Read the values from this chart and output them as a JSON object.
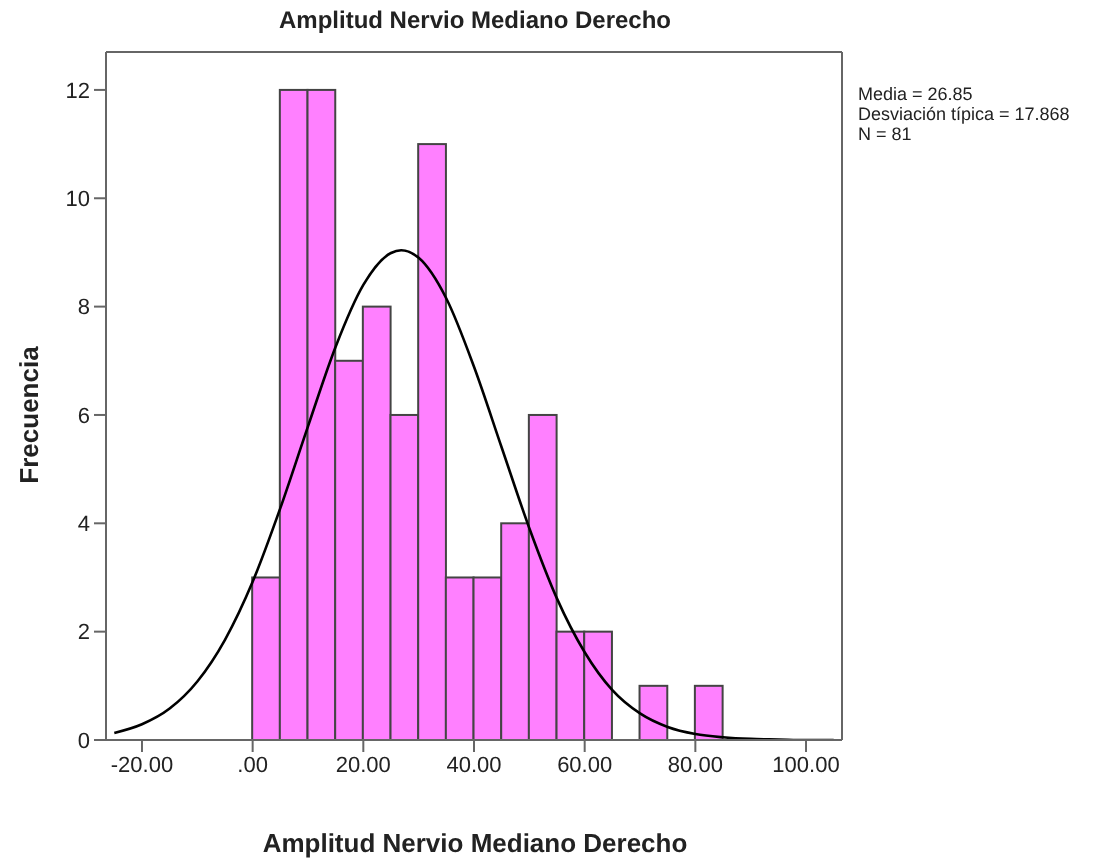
{
  "chart_data": {
    "type": "histogram",
    "title": "Amplitud Nervio Mediano Derecho",
    "xlabel": "Amplitud Nervio Mediano Derecho",
    "ylabel": "Frecuencia",
    "annotations": [
      "Media = 26.85",
      "Desviación típica = 17.868",
      "N = 81"
    ],
    "bins": [
      0,
      5,
      10,
      15,
      20,
      25,
      30,
      35,
      40,
      45,
      50,
      55,
      60,
      65,
      70,
      75,
      80,
      85
    ],
    "values": [
      3,
      12,
      12,
      7,
      8,
      6,
      11,
      3,
      3,
      4,
      6,
      2,
      2,
      0,
      1,
      0,
      1
    ],
    "color": "#ff80ff",
    "series": [
      {
        "type": "line",
        "color": "#000000",
        "x": [
          -25,
          -20,
          -15,
          -10,
          -5,
          0,
          5,
          10,
          15,
          20,
          25,
          26.85,
          30,
          35,
          40,
          45,
          50,
          55,
          60,
          65,
          70,
          75,
          80,
          85,
          90,
          95,
          100,
          105
        ],
        "values": [
          0.13,
          0.29,
          0.58,
          1.08,
          1.85,
          2.92,
          4.28,
          5.79,
          7.26,
          8.4,
          8.99,
          9.04,
          8.9,
          8.15,
          6.89,
          5.4,
          3.91,
          2.61,
          1.62,
          0.92,
          0.49,
          0.24,
          0.11,
          0.05,
          0.02,
          0.01,
          0,
          0
        ]
      }
    ],
    "xlim": [
      -26.5,
      106.5
    ],
    "xticks": [
      {
        "value": -20,
        "label": "-20.00"
      },
      {
        "value": 0,
        "label": ".00"
      },
      {
        "value": 20,
        "label": "20.00"
      },
      {
        "value": 40,
        "label": "40.00"
      },
      {
        "value": 60,
        "label": "60.00"
      },
      {
        "value": 80,
        "label": "80.00"
      },
      {
        "value": 100,
        "label": "100.00"
      }
    ],
    "ylim": [
      0,
      12.7
    ],
    "yticks": [
      0,
      2,
      4,
      6,
      8,
      10,
      12
    ],
    "grid": false,
    "line_style": "solid",
    "marker": "none"
  }
}
